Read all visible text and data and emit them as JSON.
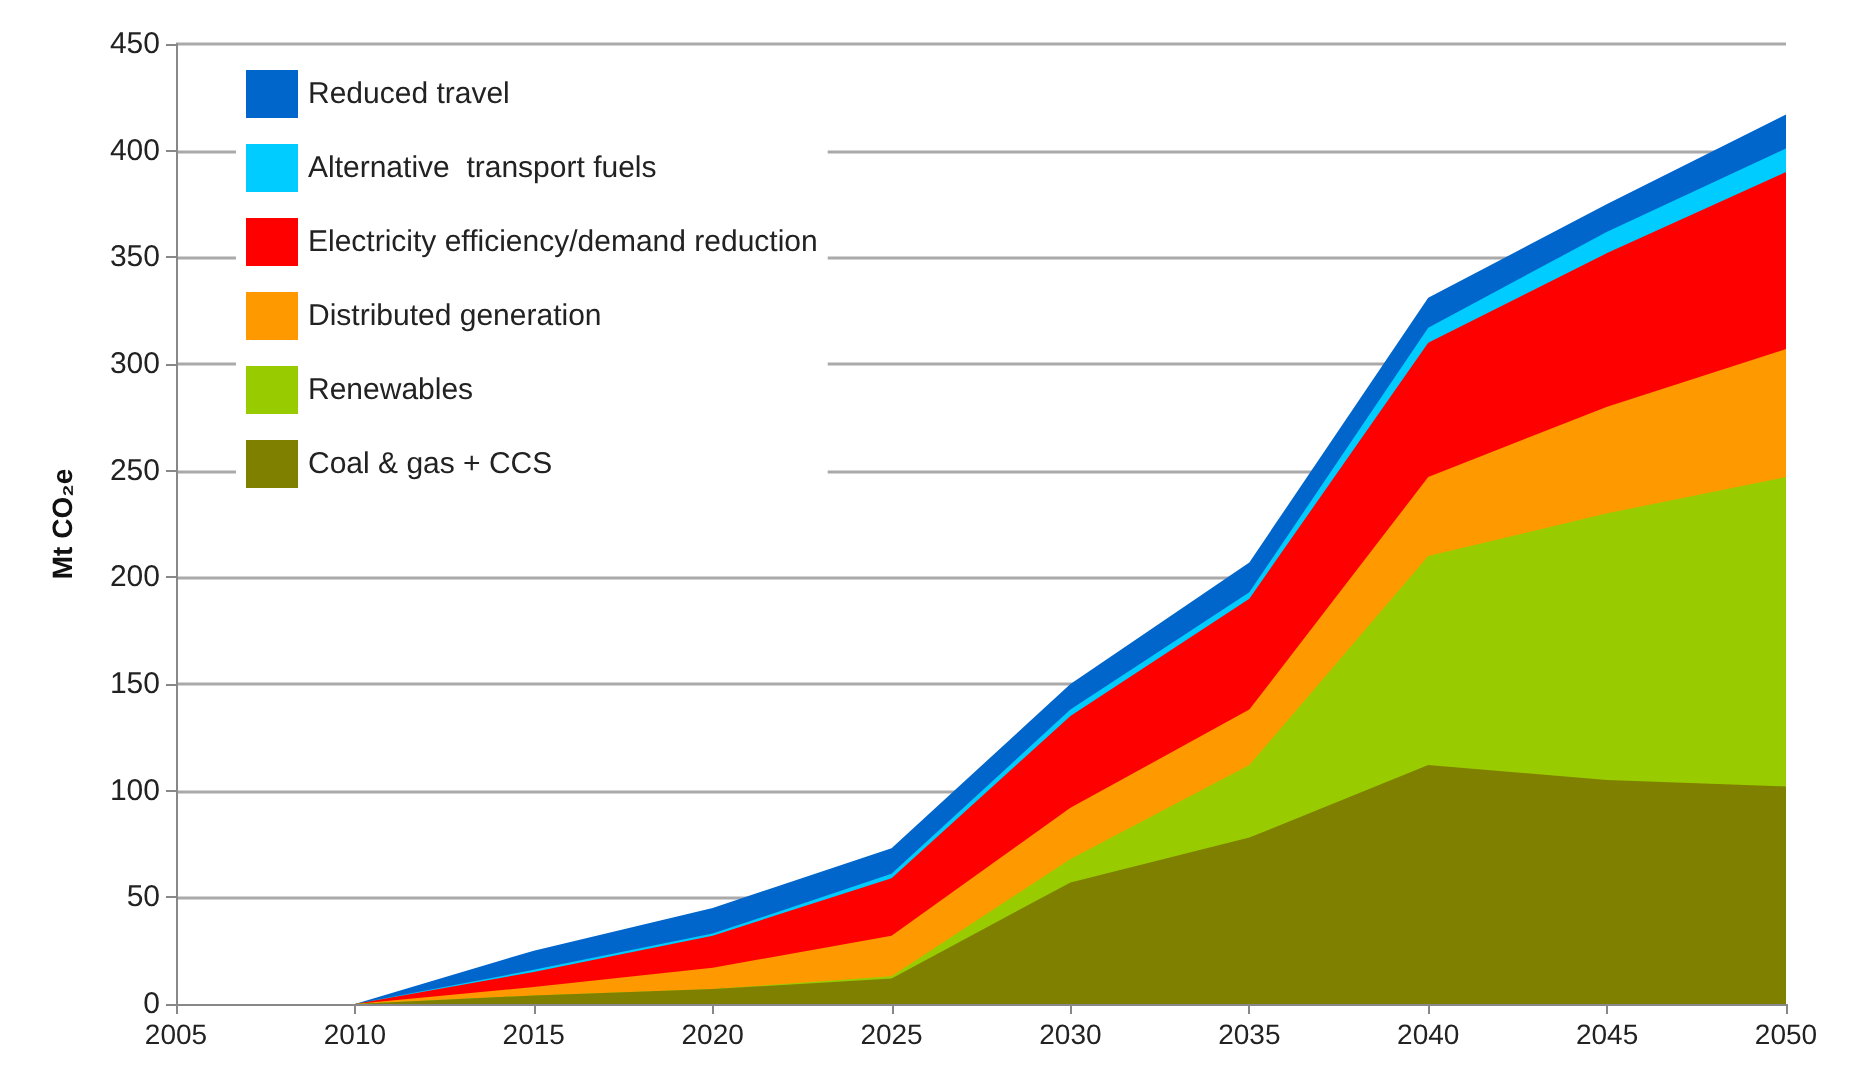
{
  "chart_data": {
    "type": "area",
    "stacked": true,
    "ylabel": "Mt CO₂e",
    "x": [
      2010,
      2015,
      2020,
      2025,
      2030,
      2035,
      2040,
      2045,
      2050
    ],
    "xlim": [
      2005,
      2050
    ],
    "xticks": [
      2005,
      2010,
      2015,
      2020,
      2025,
      2030,
      2035,
      2040,
      2045,
      2050
    ],
    "ylim": [
      0,
      450
    ],
    "yticks": [
      0,
      50,
      100,
      150,
      200,
      250,
      300,
      350,
      400,
      450
    ],
    "grid": "y",
    "legend": "top left",
    "marker": "none",
    "series": [
      {
        "name": "Coal & gas + CCS",
        "color": "#808000",
        "values": [
          0,
          4,
          7,
          12,
          57,
          78,
          112,
          105,
          102
        ]
      },
      {
        "name": "Renewables",
        "color": "#99cc00",
        "values": [
          0,
          0,
          0,
          1,
          11,
          34,
          98,
          125,
          145
        ]
      },
      {
        "name": "Distributed generation",
        "color": "#ff9900",
        "values": [
          0,
          4,
          10,
          19,
          24,
          26,
          37,
          50,
          60
        ]
      },
      {
        "name": "Electricity efficiency/demand reduction",
        "color": "#ff0000",
        "values": [
          0,
          7,
          15,
          27,
          43,
          52,
          63,
          72,
          83
        ]
      },
      {
        "name": "Alternative  transport fuels",
        "color": "#00ccff",
        "values": [
          0,
          1,
          1,
          2,
          3,
          3,
          7,
          10,
          11
        ]
      },
      {
        "name": "Reduced travel",
        "color": "#0066cc",
        "values": [
          0,
          9,
          12,
          12,
          12,
          14,
          14,
          13,
          16
        ]
      }
    ]
  }
}
